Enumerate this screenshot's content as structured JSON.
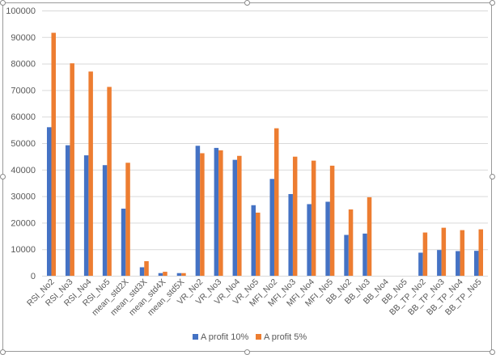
{
  "chart_data": {
    "type": "bar",
    "title": "",
    "xlabel": "",
    "ylabel": "",
    "ylim": [
      0,
      100000
    ],
    "yticks": [
      0,
      10000,
      20000,
      30000,
      40000,
      50000,
      60000,
      70000,
      80000,
      90000,
      100000
    ],
    "grid": true,
    "legend_position": "bottom",
    "categories": [
      "RSI_No2",
      "RSI_No3",
      "RSI_No4",
      "RSI_No5",
      "mean_std2X",
      "mean_std3X",
      "mean_std4X",
      "mean_std5X",
      "VR_No2",
      "VR_No3",
      "VR_No4",
      "VR_No5",
      "MFI_No2",
      "MFI_No3",
      "MFI_No4",
      "MFI_No5",
      "BB_No2",
      "BB_No3",
      "BB_No4",
      "BB_No5",
      "BB_TP_No2",
      "BB_TP_No3",
      "BB_TP_No4",
      "BB_TP_No5"
    ],
    "series": [
      {
        "name": "A profit 10%",
        "color": "#4472C4",
        "values": [
          56000,
          49200,
          45400,
          41700,
          25300,
          3200,
          1000,
          1000,
          49000,
          48200,
          43700,
          26600,
          36500,
          30800,
          27000,
          27900,
          15400,
          15900,
          0,
          0,
          8700,
          9700,
          9300,
          9400
        ]
      },
      {
        "name": "A profit 5%",
        "color": "#ED7D31",
        "values": [
          91600,
          80100,
          77000,
          71200,
          42600,
          5500,
          1500,
          1000,
          46200,
          47300,
          45200,
          23800,
          55600,
          44900,
          43400,
          41500,
          25000,
          29600,
          0,
          0,
          16300,
          18100,
          17200,
          17500
        ]
      }
    ]
  }
}
